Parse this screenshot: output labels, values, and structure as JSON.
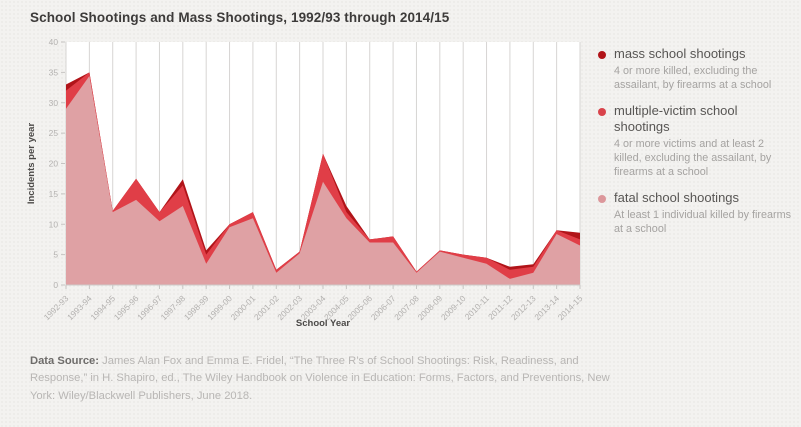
{
  "title": "School Shootings and Mass Shootings, 1992/93 through 2014/15",
  "chart_data": {
    "type": "area",
    "title": "School Shootings and Mass Shootings, 1992/93 through 2014/15",
    "xlabel": "School Year",
    "ylabel": "Incidents per year",
    "ylim": [
      0,
      40
    ],
    "ytick_step": 5,
    "grid": "vertical",
    "legend_position": "right",
    "x": [
      "1992-93",
      "1993-94",
      "1994-95",
      "1995-96",
      "1996-97",
      "1997-98",
      "1998-99",
      "1999-00",
      "2000-01",
      "2001-02",
      "2002-03",
      "2003-04",
      "2004-05",
      "2005-06",
      "2006-07",
      "2007-08",
      "2008-09",
      "2009-10",
      "2010-11",
      "2011-12",
      "2012-13",
      "2013-14",
      "2014-15"
    ],
    "series": [
      {
        "name": "mass school shootings",
        "color": "#b11419",
        "values": [
          33,
          35,
          12.2,
          17.5,
          12,
          17.4,
          5.7,
          10,
          12,
          2.5,
          5.5,
          21.6,
          13,
          7.5,
          8,
          2.2,
          5.7,
          5,
          4.5,
          3,
          3.4,
          9,
          8.6
        ]
      },
      {
        "name": "multiple-victim school shootings",
        "color": "#e03e47",
        "values": [
          32,
          35,
          12.2,
          17.5,
          12,
          16.4,
          5,
          10,
          12,
          2.5,
          5.5,
          21.6,
          12,
          7.5,
          8,
          2.2,
          5.7,
          5,
          4.5,
          2.5,
          3,
          9,
          7.5
        ]
      },
      {
        "name": "fatal school shootings",
        "color": "#dfa1a4",
        "values": [
          29,
          34.4,
          12,
          14,
          10.5,
          13,
          3.5,
          9.5,
          11,
          2,
          5.2,
          17,
          11,
          7,
          7,
          2,
          5.5,
          4.5,
          3.5,
          1,
          2,
          8.4,
          6.5
        ]
      }
    ]
  },
  "legend": {
    "items": [
      {
        "label": "mass school shootings",
        "desc": "4 or more killed, excluding the assailant, by firearms at a school",
        "color": "#b11419"
      },
      {
        "label": "multiple-victim school shootings",
        "desc": "4 or more victims and at least 2 killed, excluding the assailant, by firearms at a school",
        "color": "#d9434b"
      },
      {
        "label": "fatal school shootings",
        "desc": "At least 1 individual killed by firearms at a school",
        "color": "#dc979b"
      }
    ]
  },
  "footer": {
    "label": "Data Source:",
    "text": " James Alan Fox and Emma E. Fridel, “The Three R’s of School Shootings: Risk, Readiness, and Response,” in H. Shapiro, ed., The Wiley Handbook on Violence in Education: Forms, Factors, and Preventions, New York: Wiley/Blackwell Publishers, June 2018."
  }
}
